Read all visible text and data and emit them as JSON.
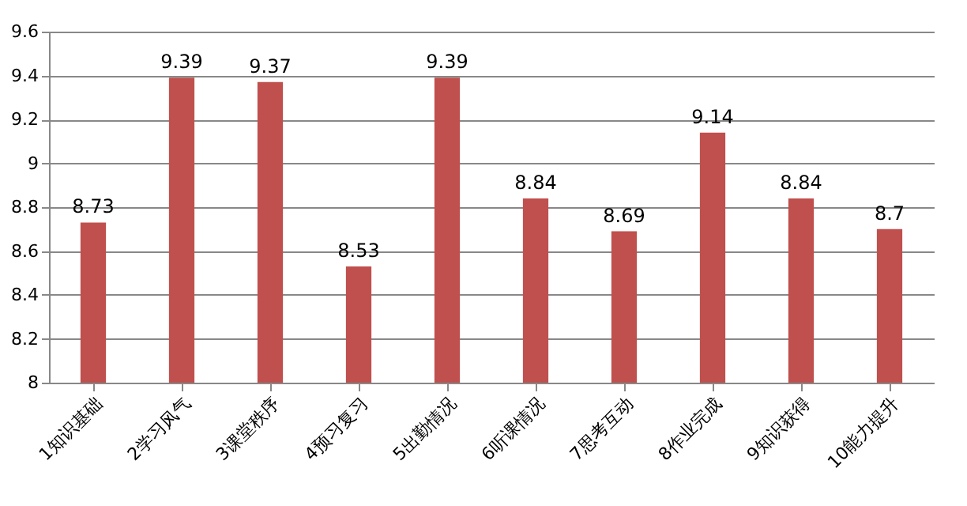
{
  "chart_data": {
    "type": "bar",
    "categories": [
      "1知识基础",
      "2学习风气",
      "3课堂秩序",
      "4预习复习",
      "5出勤情况",
      "6听课情况",
      "7思考互动",
      "8作业完成",
      "9知识获得",
      "10能力提升"
    ],
    "values": [
      8.73,
      9.39,
      9.37,
      8.53,
      9.39,
      8.84,
      8.69,
      9.14,
      8.84,
      8.7
    ],
    "color": "#c0504d",
    "ylim": [
      8,
      9.6
    ],
    "yticks": [
      {
        "value": 8,
        "label": "8"
      },
      8.2,
      8.4,
      8.6,
      8.8,
      {
        "value": 9,
        "label": "9"
      },
      9.2,
      9.4,
      9.6
    ],
    "grid": "y",
    "data_labels": true
  }
}
